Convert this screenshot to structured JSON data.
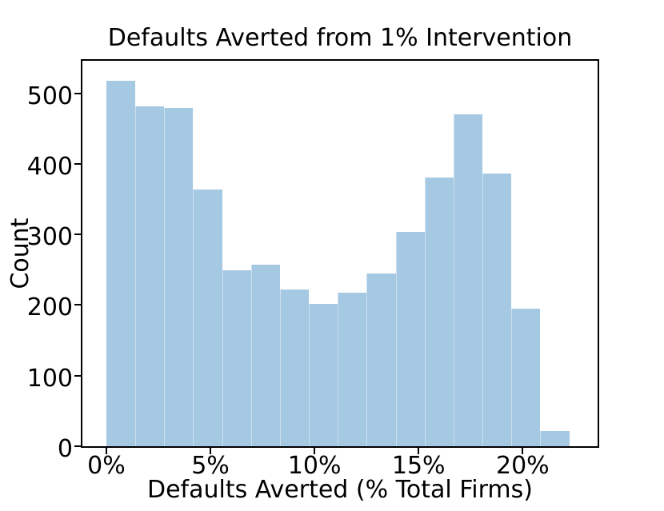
{
  "chart_data": {
    "type": "bar",
    "subtype": "histogram",
    "title": "Defaults Averted from 1% Intervention",
    "xlabel": "Defaults Averted (% Total Firms)",
    "ylabel": "Count",
    "bin_start_pct": 0.0,
    "bin_width_pct": 1.39,
    "values": [
      518,
      482,
      479,
      364,
      249,
      257,
      222,
      202,
      218,
      245,
      304,
      381,
      470,
      386,
      195,
      21
    ],
    "x_ticks": [
      {
        "value": 0,
        "label": "0%"
      },
      {
        "value": 5,
        "label": "5%"
      },
      {
        "value": 10,
        "label": "10%"
      },
      {
        "value": 15,
        "label": "15%"
      },
      {
        "value": 20,
        "label": "20%"
      }
    ],
    "y_ticks": [
      {
        "value": 0,
        "label": "0"
      },
      {
        "value": 100,
        "label": "100"
      },
      {
        "value": 200,
        "label": "200"
      },
      {
        "value": 300,
        "label": "300"
      },
      {
        "value": 400,
        "label": "400"
      },
      {
        "value": 500,
        "label": "500"
      }
    ],
    "xlim": [
      -1.15,
      23.6
    ],
    "ylim": [
      0,
      546
    ],
    "grid": false,
    "legend_position": "none",
    "bar_color": "#a5c8e3",
    "bar_seam_color": "rgba(255,255,255,0.45)",
    "axis_color": "#000000",
    "text_color": "#000000",
    "background_color": "#ffffff"
  }
}
